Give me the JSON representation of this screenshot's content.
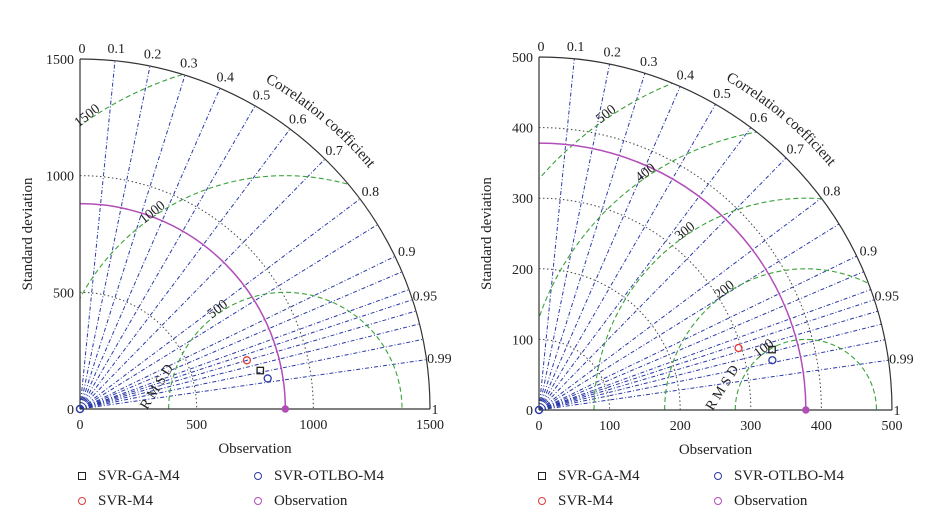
{
  "chart_data": [
    {
      "type": "taylor",
      "xlabel": "Observation",
      "ylabel": "Standard deviation",
      "arc_label": "Correlation coefficient",
      "rmsd_label": "R M S D",
      "sd_max": 1500,
      "sd_ticks": [
        0,
        500,
        1000,
        1500
      ],
      "obs_sd": 880,
      "correlation_ticks": [
        0,
        0.1,
        0.2,
        0.3,
        0.4,
        0.5,
        0.6,
        0.7,
        0.8,
        0.9,
        0.95,
        0.99,
        1
      ],
      "rmsd_arcs": [
        500,
        1000,
        1500
      ],
      "rmsd_labels": [
        "500",
        "1000",
        "1500"
      ],
      "models": [
        {
          "name": "SVR-GA-M4",
          "marker": "square",
          "color": "#222222",
          "sd": 790,
          "corr": 0.978
        },
        {
          "name": "SVR-M4",
          "marker": "circle",
          "color": "#e23b3b",
          "sd": 745,
          "corr": 0.96
        },
        {
          "name": "SVR-OTLBO-M4",
          "marker": "circle",
          "color": "#2a3aa8",
          "sd": 815,
          "corr": 0.987
        }
      ]
    },
    {
      "type": "taylor",
      "xlabel": "Observation",
      "ylabel": "Standard deviation",
      "arc_label": "Correlation coefficient",
      "rmsd_label": "R M S D",
      "sd_max": 500,
      "sd_ticks": [
        0,
        100,
        200,
        300,
        400,
        500
      ],
      "obs_sd": 378,
      "correlation_ticks": [
        0,
        0.1,
        0.2,
        0.3,
        0.4,
        0.5,
        0.6,
        0.7,
        0.8,
        0.9,
        0.95,
        0.99,
        1
      ],
      "rmsd_arcs": [
        100,
        200,
        300,
        400,
        500
      ],
      "rmsd_labels": [
        "100",
        "200",
        "300",
        "400",
        "500"
      ],
      "models": [
        {
          "name": "SVR-GA-M4",
          "marker": "square",
          "color": "#222222",
          "sd": 341,
          "corr": 0.968
        },
        {
          "name": "SVR-M4",
          "marker": "circle",
          "color": "#e23b3b",
          "sd": 296,
          "corr": 0.955
        },
        {
          "name": "SVR-OTLBO-M4",
          "marker": "circle",
          "color": "#2a3aa8",
          "sd": 338,
          "corr": 0.978
        }
      ]
    }
  ],
  "legend": [
    {
      "label": "SVR-GA-M4",
      "marker": "square",
      "color": "#222222"
    },
    {
      "label": "SVR-OTLBO-M4",
      "marker": "circle",
      "color": "#2a3aa8"
    },
    {
      "label": "SVR-M4",
      "marker": "circle",
      "color": "#e23b3b"
    },
    {
      "label": "Observation",
      "marker": "circle",
      "color": "#b24db8"
    }
  ],
  "colors": {
    "radial": "#2b3aa8",
    "rmsd": "#3aa23a",
    "sd_arc": "#333333",
    "obs_arc": "#b24db8"
  }
}
